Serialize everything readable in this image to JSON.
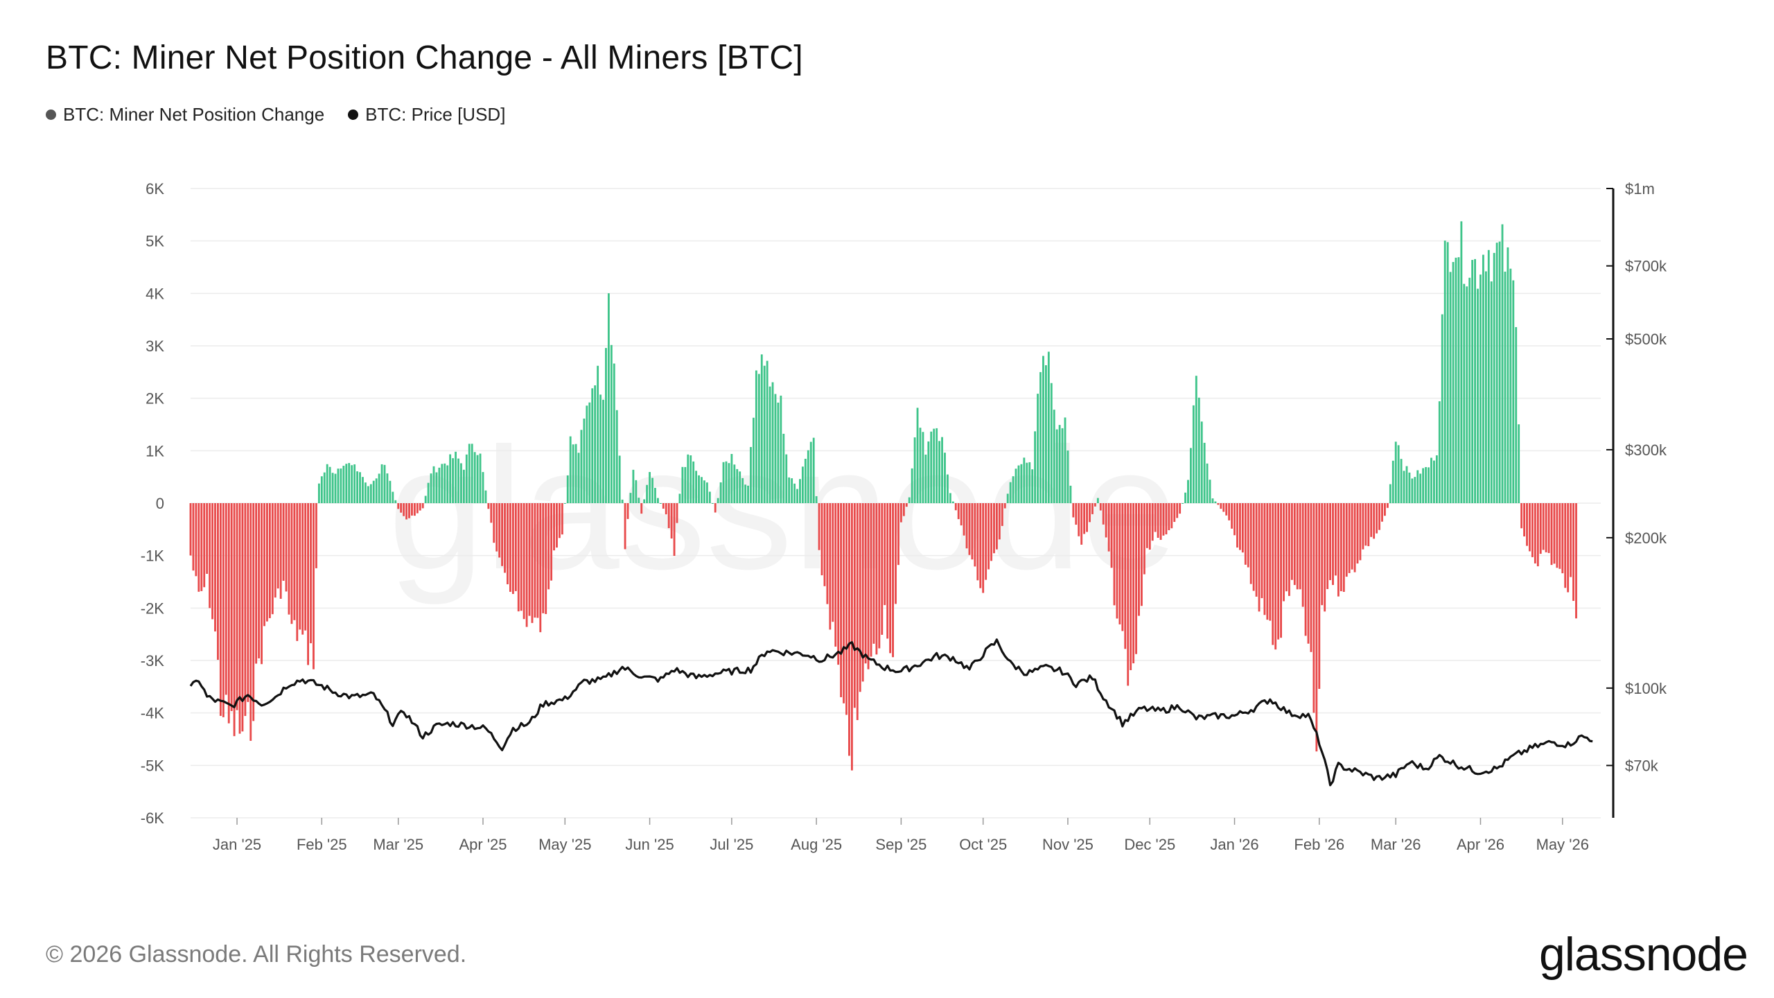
{
  "header": {
    "title": "BTC: Miner Net Position Change - All Miners [BTC]"
  },
  "legend": [
    {
      "label": "BTC: Miner Net Position Change",
      "color": "#555555"
    },
    {
      "label": "BTC: Price [USD]",
      "color": "#111111"
    }
  ],
  "footer": {
    "copyright": "© 2026 Glassnode. All Rights Reserved.",
    "logo": "glassnode"
  },
  "watermark": "glassnode",
  "colors": {
    "positive": "#3ec48a",
    "negative": "#e8494a",
    "price": "#111111",
    "grid": "#ececec"
  },
  "chart_data": {
    "type": "bar",
    "y_ticks": [
      "6K",
      "5K",
      "4K",
      "3K",
      "2K",
      "1K",
      "0",
      "-1K",
      "-2K",
      "-3K",
      "-4K",
      "-5K",
      "-6K"
    ],
    "y2_ticks": [
      "$1m",
      "$700k",
      "$500k",
      "$300k",
      "$200k",
      "$100k",
      "$70k"
    ],
    "x_ticks": [
      "Jan '25",
      "Feb '25",
      "Mar '25",
      "Apr '25",
      "May '25",
      "Jun '25",
      "Jul '25",
      "Aug '25",
      "Sep '25",
      "Oct '25",
      "Nov '25",
      "Dec '25",
      "Jan '26",
      "Feb '26",
      "Mar '26",
      "Apr '26",
      "May '26"
    ],
    "ylim": [
      -6000,
      6000
    ],
    "y2lim": [
      55000,
      1000000
    ],
    "y2_scale": "log",
    "x_range": [
      "2024-12-15",
      "2026-05-15"
    ],
    "series": [
      {
        "name": "BTC: Miner Net Position Change",
        "anchors": [
          [
            "2024-12-15",
            -1000
          ],
          [
            "2024-12-18",
            -1800
          ],
          [
            "2024-12-21",
            -1500
          ],
          [
            "2024-12-24",
            -2500
          ],
          [
            "2024-12-26",
            -3800
          ],
          [
            "2024-12-29",
            -4200
          ],
          [
            "2025-01-01",
            -4300
          ],
          [
            "2025-01-04",
            -4400
          ],
          [
            "2025-01-06",
            -4100
          ],
          [
            "2025-01-09",
            -3000
          ],
          [
            "2025-01-12",
            -2300
          ],
          [
            "2025-01-15",
            -1900
          ],
          [
            "2025-01-18",
            -1500
          ],
          [
            "2025-01-21",
            -2400
          ],
          [
            "2025-01-24",
            -2500
          ],
          [
            "2025-01-27",
            -2800
          ],
          [
            "2025-01-29",
            -2900
          ],
          [
            "2025-01-31",
            400
          ],
          [
            "2025-02-03",
            700
          ],
          [
            "2025-02-06",
            600
          ],
          [
            "2025-02-09",
            800
          ],
          [
            "2025-02-12",
            700
          ],
          [
            "2025-02-15",
            600
          ],
          [
            "2025-02-18",
            300
          ],
          [
            "2025-02-21",
            500
          ],
          [
            "2025-02-24",
            800
          ],
          [
            "2025-02-27",
            200
          ],
          [
            "2025-03-01",
            -100
          ],
          [
            "2025-03-04",
            -300
          ],
          [
            "2025-03-07",
            -250
          ],
          [
            "2025-03-10",
            -100
          ],
          [
            "2025-03-13",
            600
          ],
          [
            "2025-03-16",
            700
          ],
          [
            "2025-03-19",
            800
          ],
          [
            "2025-03-22",
            900
          ],
          [
            "2025-03-25",
            700
          ],
          [
            "2025-03-28",
            1200
          ],
          [
            "2025-03-31",
            900
          ],
          [
            "2025-04-03",
            -100
          ],
          [
            "2025-04-06",
            -1000
          ],
          [
            "2025-04-09",
            -1500
          ],
          [
            "2025-04-12",
            -1600
          ],
          [
            "2025-04-15",
            -2300
          ],
          [
            "2025-04-18",
            -2400
          ],
          [
            "2025-04-21",
            -2300
          ],
          [
            "2025-04-24",
            -2300
          ],
          [
            "2025-04-27",
            -1000
          ],
          [
            "2025-04-30",
            -600
          ],
          [
            "2025-05-03",
            1200
          ],
          [
            "2025-05-06",
            1000
          ],
          [
            "2025-05-09",
            1800
          ],
          [
            "2025-05-12",
            2500
          ],
          [
            "2025-05-15",
            2200
          ],
          [
            "2025-05-17",
            4200
          ],
          [
            "2025-05-20",
            1800
          ],
          [
            "2025-05-23",
            -800
          ],
          [
            "2025-05-26",
            700
          ],
          [
            "2025-05-29",
            -200
          ],
          [
            "2025-06-01",
            600
          ],
          [
            "2025-06-04",
            100
          ],
          [
            "2025-06-07",
            -200
          ],
          [
            "2025-06-10",
            -900
          ],
          [
            "2025-06-13",
            700
          ],
          [
            "2025-06-16",
            900
          ],
          [
            "2025-06-19",
            500
          ],
          [
            "2025-06-22",
            400
          ],
          [
            "2025-06-25",
            -200
          ],
          [
            "2025-06-28",
            700
          ],
          [
            "2025-07-01",
            900
          ],
          [
            "2025-07-04",
            600
          ],
          [
            "2025-07-07",
            300
          ],
          [
            "2025-07-10",
            2600
          ],
          [
            "2025-07-13",
            2800
          ],
          [
            "2025-07-16",
            2100
          ],
          [
            "2025-07-19",
            1900
          ],
          [
            "2025-07-22",
            500
          ],
          [
            "2025-07-25",
            300
          ],
          [
            "2025-07-28",
            900
          ],
          [
            "2025-07-31",
            1300
          ],
          [
            "2025-08-02",
            -1000
          ],
          [
            "2025-08-05",
            -1900
          ],
          [
            "2025-08-08",
            -2800
          ],
          [
            "2025-08-11",
            -4300
          ],
          [
            "2025-08-14",
            -4700
          ],
          [
            "2025-08-17",
            -3800
          ],
          [
            "2025-08-20",
            -3000
          ],
          [
            "2025-08-23",
            -2800
          ],
          [
            "2025-08-26",
            -2000
          ],
          [
            "2025-08-29",
            -3000
          ],
          [
            "2025-09-01",
            -400
          ],
          [
            "2025-09-04",
            100
          ],
          [
            "2025-09-07",
            1900
          ],
          [
            "2025-09-10",
            900
          ],
          [
            "2025-09-13",
            1500
          ],
          [
            "2025-09-16",
            1200
          ],
          [
            "2025-09-19",
            200
          ],
          [
            "2025-09-22",
            -300
          ],
          [
            "2025-09-25",
            -800
          ],
          [
            "2025-09-28",
            -1200
          ],
          [
            "2025-10-01",
            -1900
          ],
          [
            "2025-10-04",
            -1000
          ],
          [
            "2025-10-07",
            -700
          ],
          [
            "2025-10-10",
            200
          ],
          [
            "2025-10-13",
            700
          ],
          [
            "2025-10-16",
            900
          ],
          [
            "2025-10-19",
            600
          ],
          [
            "2025-10-22",
            2800
          ],
          [
            "2025-10-25",
            2900
          ],
          [
            "2025-10-28",
            1400
          ],
          [
            "2025-10-31",
            1600
          ],
          [
            "2025-11-03",
            -300
          ],
          [
            "2025-11-06",
            -800
          ],
          [
            "2025-11-09",
            -400
          ],
          [
            "2025-11-12",
            100
          ],
          [
            "2025-11-15",
            -600
          ],
          [
            "2025-11-18",
            -1800
          ],
          [
            "2025-11-21",
            -2300
          ],
          [
            "2025-11-24",
            -3600
          ],
          [
            "2025-11-27",
            -2400
          ],
          [
            "2025-11-30",
            -900
          ],
          [
            "2025-12-03",
            -600
          ],
          [
            "2025-12-06",
            -700
          ],
          [
            "2025-12-09",
            -500
          ],
          [
            "2025-12-12",
            -200
          ],
          [
            "2025-12-15",
            400
          ],
          [
            "2025-12-18",
            2700
          ],
          [
            "2025-12-21",
            1200
          ],
          [
            "2025-12-24",
            100
          ],
          [
            "2025-12-27",
            -100
          ],
          [
            "2025-12-30",
            -300
          ],
          [
            "2026-01-02",
            -800
          ],
          [
            "2026-01-05",
            -1100
          ],
          [
            "2026-01-08",
            -1700
          ],
          [
            "2026-01-11",
            -2000
          ],
          [
            "2026-01-14",
            -2400
          ],
          [
            "2026-01-17",
            -2800
          ],
          [
            "2026-01-20",
            -1700
          ],
          [
            "2026-01-23",
            -1600
          ],
          [
            "2026-01-26",
            -2000
          ],
          [
            "2026-01-29",
            -3200
          ],
          [
            "2026-01-31",
            -4800
          ],
          [
            "2026-02-02",
            -2200
          ],
          [
            "2026-02-05",
            -1400
          ],
          [
            "2026-02-08",
            -1600
          ],
          [
            "2026-02-11",
            -1500
          ],
          [
            "2026-02-14",
            -1200
          ],
          [
            "2026-02-17",
            -900
          ],
          [
            "2026-02-20",
            -700
          ],
          [
            "2026-02-23",
            -500
          ],
          [
            "2026-02-26",
            -100
          ],
          [
            "2026-03-01",
            1300
          ],
          [
            "2026-03-04",
            700
          ],
          [
            "2026-03-07",
            500
          ],
          [
            "2026-03-10",
            600
          ],
          [
            "2026-03-13",
            700
          ],
          [
            "2026-03-16",
            1000
          ],
          [
            "2026-03-19",
            4600
          ],
          [
            "2026-03-22",
            5200
          ],
          [
            "2026-03-25",
            4800
          ],
          [
            "2026-03-28",
            4600
          ],
          [
            "2026-03-31",
            4500
          ],
          [
            "2026-04-03",
            4900
          ],
          [
            "2026-04-06",
            4700
          ],
          [
            "2026-04-09",
            4800
          ],
          [
            "2026-04-12",
            4300
          ],
          [
            "2026-04-14",
            3800
          ],
          [
            "2026-04-16",
            -500
          ],
          [
            "2026-04-19",
            -900
          ],
          [
            "2026-04-22",
            -1100
          ],
          [
            "2026-04-25",
            -900
          ],
          [
            "2026-04-28",
            -1200
          ],
          [
            "2026-05-01",
            -1400
          ],
          [
            "2026-05-04",
            -1600
          ],
          [
            "2026-05-06",
            -2300
          ]
        ]
      },
      {
        "name": "BTC: Price [USD]",
        "anchors": [
          [
            "2024-12-15",
            100000
          ],
          [
            "2024-12-18",
            104000
          ],
          [
            "2024-12-21",
            96000
          ],
          [
            "2024-12-25",
            94000
          ],
          [
            "2024-12-30",
            92000
          ],
          [
            "2025-01-05",
            97000
          ],
          [
            "2025-01-10",
            93000
          ],
          [
            "2025-01-15",
            96000
          ],
          [
            "2025-01-20",
            102000
          ],
          [
            "2025-01-25",
            104000
          ],
          [
            "2025-02-01",
            101000
          ],
          [
            "2025-02-06",
            98000
          ],
          [
            "2025-02-12",
            96000
          ],
          [
            "2025-02-20",
            97000
          ],
          [
            "2025-02-27",
            85000
          ],
          [
            "2025-03-03",
            90000
          ],
          [
            "2025-03-10",
            80000
          ],
          [
            "2025-03-15",
            84000
          ],
          [
            "2025-03-20",
            85000
          ],
          [
            "2025-03-28",
            84000
          ],
          [
            "2025-04-02",
            83000
          ],
          [
            "2025-04-08",
            76000
          ],
          [
            "2025-04-12",
            83000
          ],
          [
            "2025-04-18",
            85000
          ],
          [
            "2025-04-23",
            93000
          ],
          [
            "2025-05-01",
            95000
          ],
          [
            "2025-05-08",
            103000
          ],
          [
            "2025-05-15",
            104000
          ],
          [
            "2025-05-22",
            110000
          ],
          [
            "2025-05-30",
            105000
          ],
          [
            "2025-06-05",
            104000
          ],
          [
            "2025-06-10",
            109000
          ],
          [
            "2025-06-18",
            105000
          ],
          [
            "2025-06-25",
            107000
          ],
          [
            "2025-07-01",
            108000
          ],
          [
            "2025-07-08",
            109000
          ],
          [
            "2025-07-14",
            119000
          ],
          [
            "2025-07-20",
            118000
          ],
          [
            "2025-07-28",
            117000
          ],
          [
            "2025-08-03",
            114000
          ],
          [
            "2025-08-10",
            118000
          ],
          [
            "2025-08-14",
            122000
          ],
          [
            "2025-08-20",
            114000
          ],
          [
            "2025-08-26",
            110000
          ],
          [
            "2025-09-01",
            108000
          ],
          [
            "2025-09-08",
            112000
          ],
          [
            "2025-09-14",
            116000
          ],
          [
            "2025-09-20",
            115000
          ],
          [
            "2025-09-26",
            109000
          ],
          [
            "2025-10-01",
            117000
          ],
          [
            "2025-10-06",
            124000
          ],
          [
            "2025-10-11",
            112000
          ],
          [
            "2025-10-17",
            107000
          ],
          [
            "2025-10-24",
            110000
          ],
          [
            "2025-10-30",
            108000
          ],
          [
            "2025-11-04",
            102000
          ],
          [
            "2025-11-10",
            105000
          ],
          [
            "2025-11-14",
            96000
          ],
          [
            "2025-11-21",
            85000
          ],
          [
            "2025-11-28",
            91000
          ],
          [
            "2025-12-05",
            90000
          ],
          [
            "2025-12-12",
            92000
          ],
          [
            "2025-12-18",
            87000
          ],
          [
            "2025-12-26",
            88000
          ],
          [
            "2026-01-01",
            88000
          ],
          [
            "2026-01-08",
            91000
          ],
          [
            "2026-01-14",
            95000
          ],
          [
            "2026-01-21",
            89000
          ],
          [
            "2026-01-28",
            88000
          ],
          [
            "2026-02-01",
            78000
          ],
          [
            "2026-02-05",
            64000
          ],
          [
            "2026-02-08",
            70000
          ],
          [
            "2026-02-15",
            68000
          ],
          [
            "2026-02-22",
            66000
          ],
          [
            "2026-03-01",
            67000
          ],
          [
            "2026-03-06",
            71000
          ],
          [
            "2026-03-12",
            69000
          ],
          [
            "2026-03-17",
            73000
          ],
          [
            "2026-03-24",
            70000
          ],
          [
            "2026-03-31",
            68000
          ],
          [
            "2026-04-07",
            69000
          ],
          [
            "2026-04-13",
            73000
          ],
          [
            "2026-04-20",
            76000
          ],
          [
            "2026-04-27",
            78000
          ],
          [
            "2026-05-03",
            77000
          ],
          [
            "2026-05-08",
            80000
          ],
          [
            "2026-05-12",
            79000
          ]
        ]
      }
    ]
  }
}
